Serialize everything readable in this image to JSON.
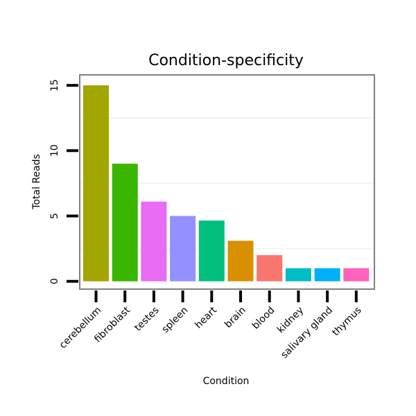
{
  "chart_data": {
    "type": "bar",
    "title": "Condition-specificity",
    "xlabel": "Condition",
    "ylabel": "Total Reads",
    "categories": [
      "cerebellum",
      "fibroblast",
      "testes",
      "spleen",
      "heart",
      "brain",
      "blood",
      "kidney",
      "salivary gland",
      "thymus"
    ],
    "values": [
      15,
      9,
      6.1,
      5,
      4.65,
      3.1,
      2,
      1,
      1,
      1
    ],
    "colors": [
      "#a3a500",
      "#39b600",
      "#e76bf3",
      "#9590ff",
      "#00bf7d",
      "#d89000",
      "#f8766d",
      "#00bfc4",
      "#00b0f6",
      "#ff62bc"
    ],
    "yticks": [
      0,
      5,
      10,
      15
    ],
    "ylim": [
      -0.6,
      15.8
    ],
    "grid": true,
    "legend": "none"
  }
}
